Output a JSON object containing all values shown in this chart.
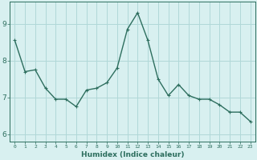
{
  "x": [
    0,
    1,
    2,
    3,
    4,
    5,
    6,
    7,
    8,
    9,
    10,
    11,
    12,
    13,
    14,
    15,
    16,
    17,
    18,
    19,
    20,
    21,
    22,
    23
  ],
  "y": [
    8.55,
    7.7,
    7.75,
    7.25,
    6.95,
    6.95,
    6.75,
    7.2,
    7.25,
    7.4,
    7.8,
    8.85,
    9.3,
    8.55,
    7.5,
    7.05,
    7.35,
    7.05,
    6.95,
    6.95,
    6.8,
    6.6,
    6.6,
    6.35
  ],
  "line_color": "#2d6e5e",
  "marker": "+",
  "marker_size": 3,
  "bg_color": "#d8f0f0",
  "grid_color": "#b0d8d8",
  "axis_color": "#2d6e5e",
  "xlabel": "Humidex (Indice chaleur)",
  "ylim": [
    5.8,
    9.6
  ],
  "yticks": [
    6,
    7,
    8,
    9
  ],
  "xtick_labels": [
    "0",
    "1",
    "2",
    "3",
    "4",
    "5",
    "6",
    "7",
    "8",
    "9",
    "10",
    "11",
    "12",
    "13",
    "14",
    "15",
    "16",
    "17",
    "18",
    "19",
    "20",
    "21",
    "22",
    "23"
  ]
}
